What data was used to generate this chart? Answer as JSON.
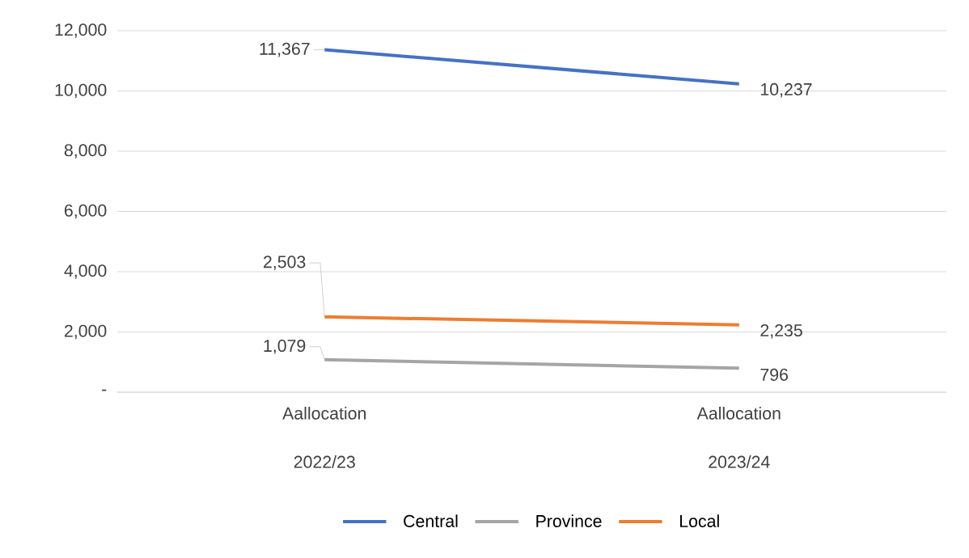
{
  "chart_data": {
    "type": "line",
    "categories": [
      "Aallocation 2022/23",
      "Aallocation 2023/24"
    ],
    "series": [
      {
        "name": "Central",
        "color": "#4472c4",
        "values": [
          11367,
          10237
        ],
        "value_labels": [
          "11,367",
          "10,237"
        ]
      },
      {
        "name": "Province",
        "color": "#a5a5a5",
        "values": [
          1079,
          796
        ],
        "value_labels": [
          "1,079",
          "796"
        ]
      },
      {
        "name": "Local",
        "color": "#ed7d31",
        "values": [
          2503,
          2235
        ],
        "value_labels": [
          "2,503",
          "2,235"
        ]
      }
    ],
    "ylim": [
      0,
      12000
    ],
    "yticks": [
      {
        "value": 0,
        "label": "-"
      },
      {
        "value": 2000,
        "label": "2,000"
      },
      {
        "value": 4000,
        "label": "4,000"
      },
      {
        "value": 6000,
        "label": "6,000"
      },
      {
        "value": 8000,
        "label": "8,000"
      },
      {
        "value": 10000,
        "label": "10,000"
      },
      {
        "value": 12000,
        "label": "12,000"
      }
    ],
    "grid": "y",
    "legend": "bottom",
    "marker": "none",
    "line_style": "solid"
  }
}
